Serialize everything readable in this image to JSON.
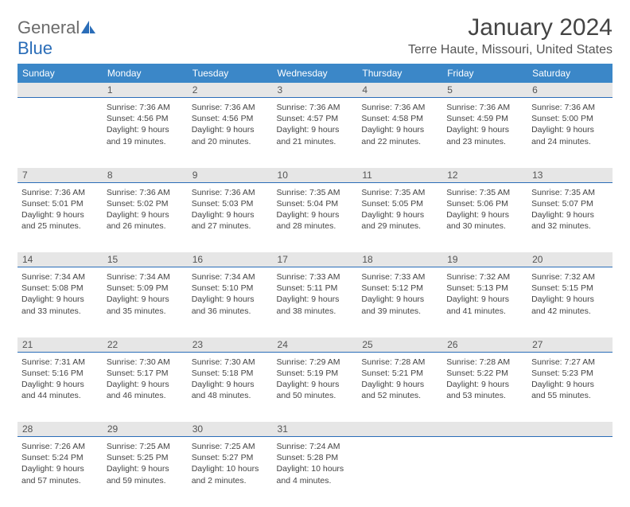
{
  "logo": {
    "part1": "General",
    "part2": "Blue"
  },
  "title": "January 2024",
  "location": "Terre Haute, Missouri, United States",
  "colors": {
    "header_bg": "#3b87c8",
    "header_text": "#ffffff",
    "border": "#2a6db8",
    "daynum_bg": "#e6e6e6",
    "text": "#444444",
    "logo_gray": "#6b6b6b",
    "logo_blue": "#2a6db8"
  },
  "day_headers": [
    "Sunday",
    "Monday",
    "Tuesday",
    "Wednesday",
    "Thursday",
    "Friday",
    "Saturday"
  ],
  "weeks": [
    {
      "nums": [
        "",
        "1",
        "2",
        "3",
        "4",
        "5",
        "6"
      ],
      "cells": [
        "",
        "Sunrise: 7:36 AM\nSunset: 4:56 PM\nDaylight: 9 hours and 19 minutes.",
        "Sunrise: 7:36 AM\nSunset: 4:56 PM\nDaylight: 9 hours and 20 minutes.",
        "Sunrise: 7:36 AM\nSunset: 4:57 PM\nDaylight: 9 hours and 21 minutes.",
        "Sunrise: 7:36 AM\nSunset: 4:58 PM\nDaylight: 9 hours and 22 minutes.",
        "Sunrise: 7:36 AM\nSunset: 4:59 PM\nDaylight: 9 hours and 23 minutes.",
        "Sunrise: 7:36 AM\nSunset: 5:00 PM\nDaylight: 9 hours and 24 minutes."
      ]
    },
    {
      "nums": [
        "7",
        "8",
        "9",
        "10",
        "11",
        "12",
        "13"
      ],
      "cells": [
        "Sunrise: 7:36 AM\nSunset: 5:01 PM\nDaylight: 9 hours and 25 minutes.",
        "Sunrise: 7:36 AM\nSunset: 5:02 PM\nDaylight: 9 hours and 26 minutes.",
        "Sunrise: 7:36 AM\nSunset: 5:03 PM\nDaylight: 9 hours and 27 minutes.",
        "Sunrise: 7:35 AM\nSunset: 5:04 PM\nDaylight: 9 hours and 28 minutes.",
        "Sunrise: 7:35 AM\nSunset: 5:05 PM\nDaylight: 9 hours and 29 minutes.",
        "Sunrise: 7:35 AM\nSunset: 5:06 PM\nDaylight: 9 hours and 30 minutes.",
        "Sunrise: 7:35 AM\nSunset: 5:07 PM\nDaylight: 9 hours and 32 minutes."
      ]
    },
    {
      "nums": [
        "14",
        "15",
        "16",
        "17",
        "18",
        "19",
        "20"
      ],
      "cells": [
        "Sunrise: 7:34 AM\nSunset: 5:08 PM\nDaylight: 9 hours and 33 minutes.",
        "Sunrise: 7:34 AM\nSunset: 5:09 PM\nDaylight: 9 hours and 35 minutes.",
        "Sunrise: 7:34 AM\nSunset: 5:10 PM\nDaylight: 9 hours and 36 minutes.",
        "Sunrise: 7:33 AM\nSunset: 5:11 PM\nDaylight: 9 hours and 38 minutes.",
        "Sunrise: 7:33 AM\nSunset: 5:12 PM\nDaylight: 9 hours and 39 minutes.",
        "Sunrise: 7:32 AM\nSunset: 5:13 PM\nDaylight: 9 hours and 41 minutes.",
        "Sunrise: 7:32 AM\nSunset: 5:15 PM\nDaylight: 9 hours and 42 minutes."
      ]
    },
    {
      "nums": [
        "21",
        "22",
        "23",
        "24",
        "25",
        "26",
        "27"
      ],
      "cells": [
        "Sunrise: 7:31 AM\nSunset: 5:16 PM\nDaylight: 9 hours and 44 minutes.",
        "Sunrise: 7:30 AM\nSunset: 5:17 PM\nDaylight: 9 hours and 46 minutes.",
        "Sunrise: 7:30 AM\nSunset: 5:18 PM\nDaylight: 9 hours and 48 minutes.",
        "Sunrise: 7:29 AM\nSunset: 5:19 PM\nDaylight: 9 hours and 50 minutes.",
        "Sunrise: 7:28 AM\nSunset: 5:21 PM\nDaylight: 9 hours and 52 minutes.",
        "Sunrise: 7:28 AM\nSunset: 5:22 PM\nDaylight: 9 hours and 53 minutes.",
        "Sunrise: 7:27 AM\nSunset: 5:23 PM\nDaylight: 9 hours and 55 minutes."
      ]
    },
    {
      "nums": [
        "28",
        "29",
        "30",
        "31",
        "",
        "",
        ""
      ],
      "cells": [
        "Sunrise: 7:26 AM\nSunset: 5:24 PM\nDaylight: 9 hours and 57 minutes.",
        "Sunrise: 7:25 AM\nSunset: 5:25 PM\nDaylight: 9 hours and 59 minutes.",
        "Sunrise: 7:25 AM\nSunset: 5:27 PM\nDaylight: 10 hours and 2 minutes.",
        "Sunrise: 7:24 AM\nSunset: 5:28 PM\nDaylight: 10 hours and 4 minutes.",
        "",
        "",
        ""
      ]
    }
  ]
}
